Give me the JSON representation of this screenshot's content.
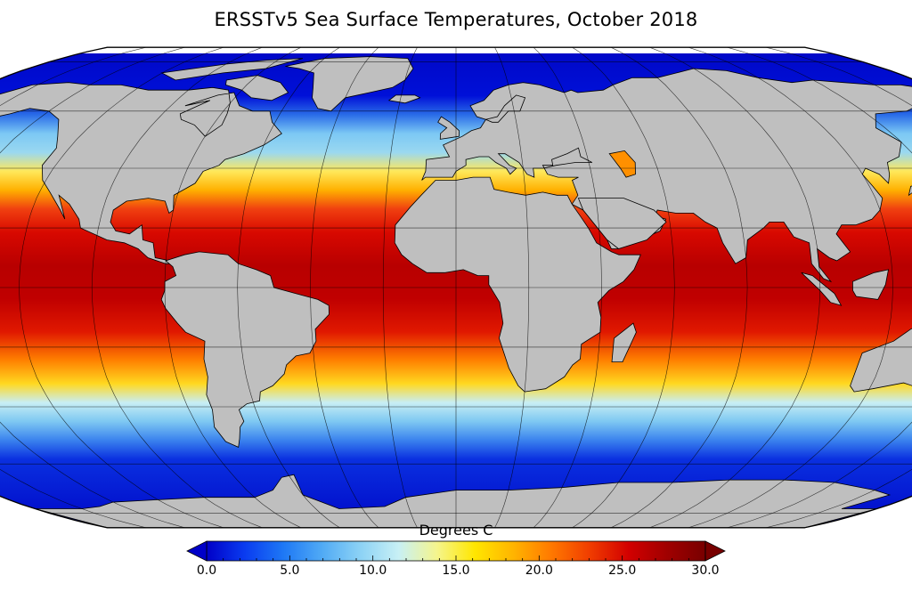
{
  "title": "ERSSTv5 Sea Surface Temperatures, October 2018",
  "colorbar": {
    "label": "Degrees C",
    "min": 0.0,
    "max": 30.0,
    "ticks": [
      "0.0",
      "5.0",
      "10.0",
      "15.0",
      "20.0",
      "25.0",
      "30.0"
    ],
    "extend": "both",
    "colors": [
      "#0000c8",
      "#0a3cf0",
      "#1e78f5",
      "#50aaf5",
      "#8cd2f5",
      "#c8f0f5",
      "#f5f58c",
      "#ffe600",
      "#ffb400",
      "#ff7800",
      "#f03c00",
      "#d20000",
      "#a00000",
      "#780000"
    ]
  },
  "map": {
    "projection": "robinson",
    "ocean_colors": {
      "polar": "#0010d0",
      "subpolar": "#3c8ef0",
      "cool": "#8ed6f6",
      "mild": "#fff36a",
      "warm": "#ffb300",
      "hot": "#e01800",
      "tropical": "#b80000"
    },
    "land_color": "#bfbfbf",
    "coastline_color": "#000000",
    "gridline_color": "#000000"
  }
}
